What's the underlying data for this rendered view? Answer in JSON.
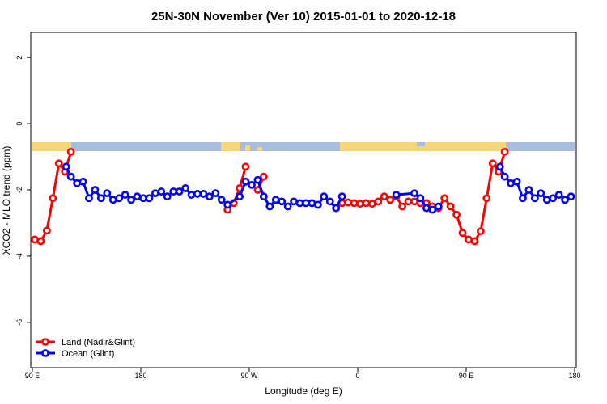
{
  "chart_data": {
    "type": "line",
    "title": "25N-30N November (Ver 10)   2015-01-01 to 2020-12-18",
    "x_label": "Longitude (deg E)",
    "y_label": "XCO2 - MLO trend (ppm)",
    "xlim": [
      90,
      540
    ],
    "ylim": [
      -7.37,
      2.76
    ],
    "xticks": [
      {
        "value": 90,
        "label": "90 E"
      },
      180,
      {
        "value": 270,
        "label": "90 W"
      },
      {
        "value": 360,
        "label": "0"
      },
      {
        "value": 450,
        "label": "90 E"
      },
      {
        "value": 540,
        "label": "180"
      }
    ],
    "yticks": [
      -6,
      -4,
      -2,
      0,
      2
    ],
    "legend": "bottom-left",
    "series": [
      {
        "name": "Land (Nadir&Glint)",
        "color": "#ff0000",
        "x": [
          92,
          97,
          102,
          107,
          112,
          117,
          122,
          187,
          252,
          257,
          262,
          267,
          272,
          277,
          282,
          312,
          342,
          347,
          352,
          357,
          362,
          367,
          372,
          377,
          382,
          387,
          392,
          397,
          402,
          407,
          412,
          417,
          422,
          427,
          432,
          437,
          442,
          447,
          452,
          457,
          462,
          467,
          472,
          477,
          482
        ],
        "values": [
          -3.5,
          -3.55,
          -3.23,
          -2.25,
          -1.2,
          -1.45,
          -0.85,
          null,
          -2.6,
          -2.4,
          -1.95,
          -1.3,
          null,
          -2.0,
          -1.6,
          null,
          -2.55,
          -2.4,
          -2.38,
          -2.4,
          -2.42,
          -2.4,
          -2.42,
          -2.35,
          -2.2,
          -2.3,
          -2.2,
          -2.5,
          -2.35,
          -2.35,
          -2.4,
          -2.4,
          -2.5,
          -2.55,
          -2.25,
          -2.5,
          -2.75,
          -3.3,
          -3.5,
          -3.55,
          -3.25,
          -2.25,
          -1.2,
          -1.45,
          -0.85
        ]
      },
      {
        "name": "Ocean (Glint)",
        "color": "#0000ff",
        "x": [
          118,
          122,
          127,
          132,
          137,
          142,
          147,
          152,
          157,
          162,
          167,
          172,
          177,
          182,
          187,
          192,
          197,
          202,
          207,
          212,
          217,
          222,
          227,
          232,
          237,
          242,
          247,
          252,
          262,
          267,
          272,
          277,
          282,
          287,
          292,
          297,
          302,
          307,
          312,
          317,
          322,
          327,
          332,
          337,
          342,
          347,
          370,
          392,
          407,
          412,
          417,
          422,
          427,
          450,
          478,
          482,
          487,
          492,
          497,
          502,
          507,
          512,
          517,
          522,
          527,
          532,
          537
        ],
        "values": [
          -1.3,
          -1.6,
          -1.8,
          -1.75,
          -2.25,
          -2.0,
          -2.25,
          -2.1,
          -2.3,
          -2.25,
          -2.15,
          -2.3,
          -2.2,
          -2.25,
          -2.25,
          -2.1,
          -2.05,
          -2.2,
          -2.05,
          -2.05,
          -1.95,
          -2.15,
          -2.12,
          -2.12,
          -2.2,
          -2.1,
          -2.3,
          -2.45,
          -2.2,
          -1.75,
          -1.85,
          -1.7,
          -2.2,
          -2.5,
          -2.3,
          -2.35,
          -2.5,
          -2.35,
          -2.4,
          -2.4,
          -2.4,
          -2.45,
          -2.2,
          -2.35,
          -2.55,
          -2.2,
          null,
          -2.15,
          -2.1,
          -2.25,
          -2.55,
          -2.6,
          -2.5,
          null,
          -1.3,
          -1.6,
          -1.8,
          -1.75,
          -2.25,
          -2.0,
          -2.25,
          -2.1,
          -2.3,
          -2.25,
          -2.15,
          -2.3,
          -2.2
        ]
      }
    ]
  }
}
